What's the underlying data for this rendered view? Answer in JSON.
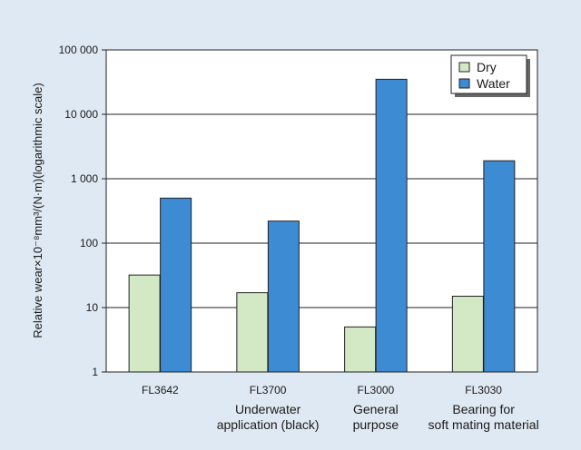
{
  "chart_data": {
    "type": "bar",
    "ylabel": "Relative wear×10⁻⁸mm³/(N·m)(logarithmic scale)",
    "y_scale": "log",
    "ylim": [
      1,
      100000
    ],
    "y_ticks": [
      1,
      10,
      100,
      1000,
      10000,
      100000
    ],
    "y_tick_labels": [
      "1",
      "10",
      "100",
      "1 000",
      "10 000",
      "100 000"
    ],
    "grid": "horizontal",
    "legend_position": "top-right",
    "categories": [
      {
        "code": "FL3642",
        "desc": []
      },
      {
        "code": "FL3700",
        "desc": [
          "Underwater",
          "application (black)"
        ]
      },
      {
        "code": "FL3000",
        "desc": [
          "General",
          "purpose"
        ]
      },
      {
        "code": "FL3030",
        "desc": [
          "Bearing for",
          "soft mating material"
        ]
      }
    ],
    "series": [
      {
        "name": "Dry",
        "color": "#d3e8c4",
        "values": [
          32,
          17,
          5,
          15
        ]
      },
      {
        "name": "Water",
        "color": "#3d8bd3",
        "values": [
          500,
          220,
          35000,
          1900
        ]
      }
    ]
  }
}
